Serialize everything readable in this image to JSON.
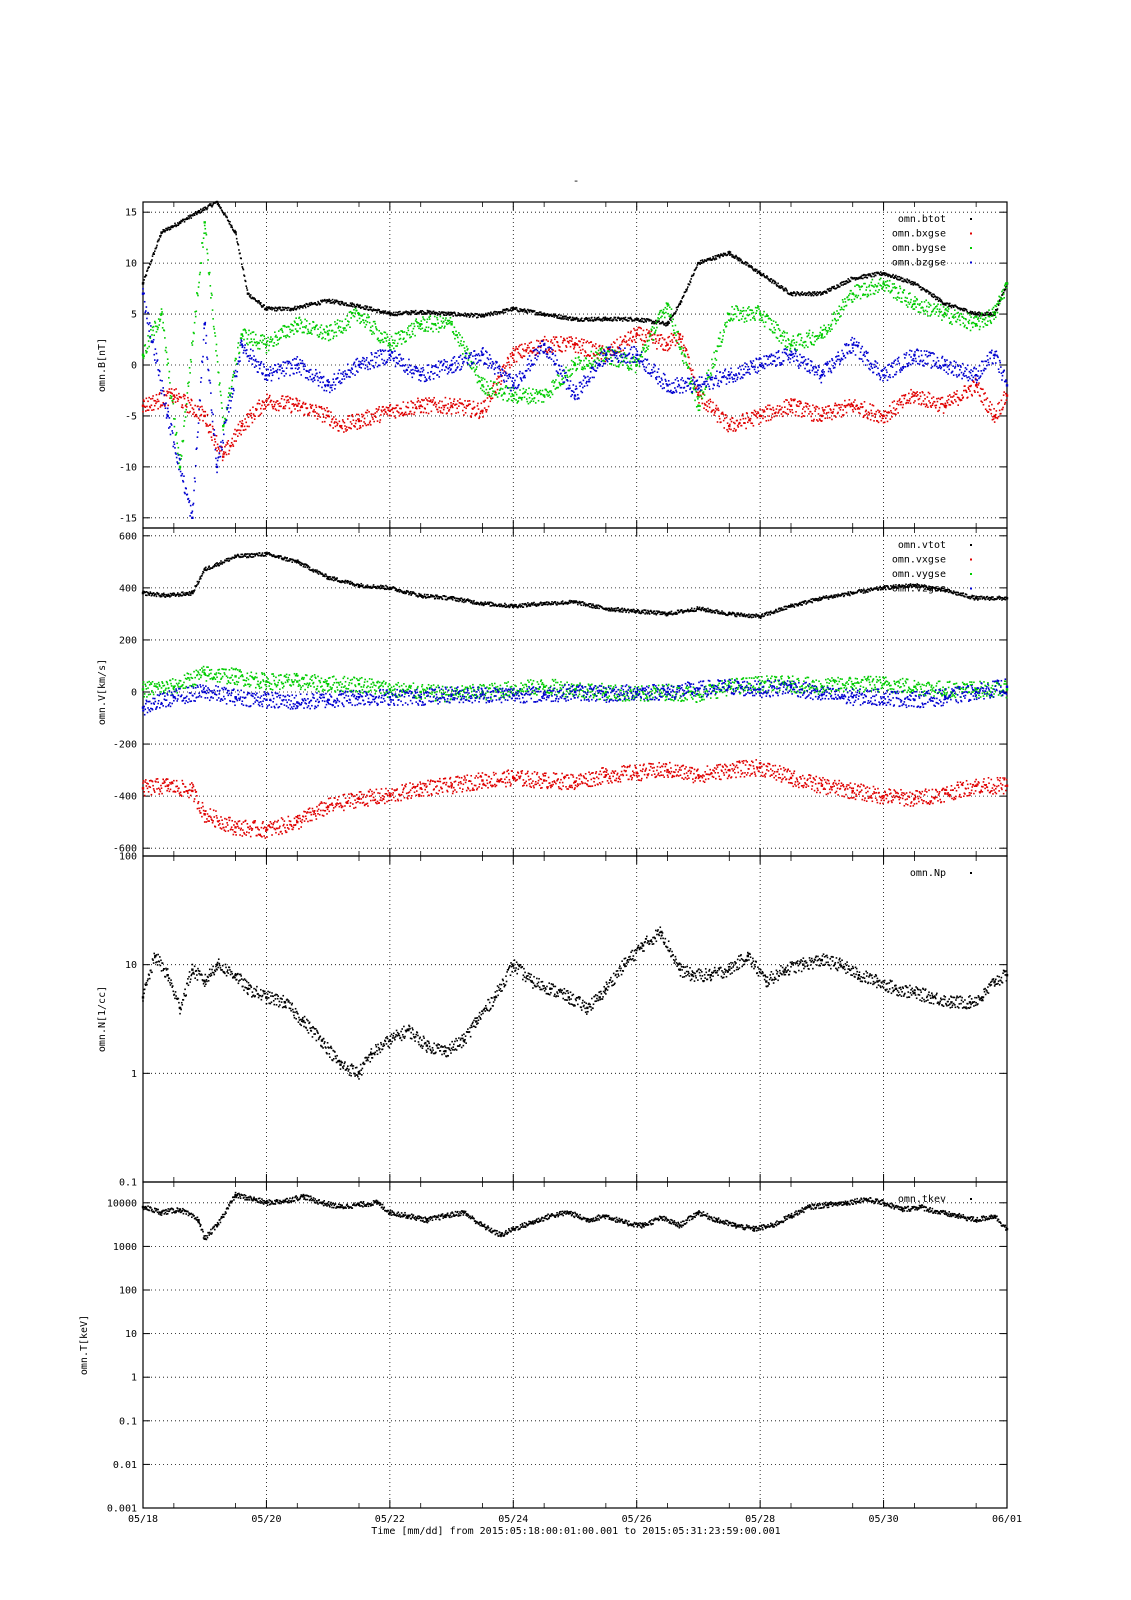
{
  "figure": {
    "title": "-",
    "time_label": "Time [mm/dd]  from 2015:05:18:00:01:00.001  to  2015:05:31:23:59:00.001"
  },
  "colors": {
    "black": "#000000",
    "red": "#e00000",
    "green": "#00cc00",
    "blue": "#0000d0"
  },
  "chart_data": [
    {
      "type": "scatter",
      "ylabel": "omn.B[nT]",
      "ylim": [
        -16,
        16
      ],
      "yticks": [
        15,
        10,
        5,
        0,
        -5,
        -10,
        -15
      ],
      "grid": true,
      "legend_position": "top-right",
      "x_unit": "days since 05/18 00:00",
      "series": [
        {
          "name": "omn.btot",
          "color": "#000000",
          "x": [
            0,
            0.3,
            0.6,
            0.9,
            1.2,
            1.5,
            1.7,
            2,
            2.4,
            3,
            3.5,
            4,
            4.5,
            5,
            5.5,
            6,
            6.5,
            7,
            7.5,
            8,
            8.5,
            8.7,
            9,
            9.5,
            10,
            10.5,
            11,
            11.5,
            12,
            12.5,
            13,
            13.5,
            13.8,
            14
          ],
          "y": [
            8,
            13,
            14,
            15,
            16,
            13,
            7,
            5.5,
            5.5,
            6.3,
            5.8,
            5,
            5.2,
            5,
            4.8,
            5.5,
            5,
            4.5,
            4.5,
            4.5,
            4,
            6,
            10,
            11,
            9,
            7,
            7,
            8.5,
            9,
            8,
            6,
            5,
            5,
            8
          ]
        },
        {
          "name": "omn.bxgse",
          "color": "#e00000",
          "x": [
            0,
            0.5,
            1,
            1.3,
            1.6,
            2,
            2.5,
            3,
            3.2,
            3.5,
            4,
            4.5,
            5,
            5.5,
            6,
            6.5,
            7,
            7.5,
            8,
            8.5,
            8.7,
            9,
            9.5,
            10,
            10.5,
            11,
            11.5,
            12,
            12.5,
            13,
            13.5,
            13.8,
            14
          ],
          "y": [
            -4,
            -3,
            -5,
            -9,
            -6,
            -3.5,
            -4,
            -5,
            -6,
            -5.5,
            -4.5,
            -4,
            -4,
            -4.5,
            1,
            2,
            2,
            1,
            3,
            2,
            3,
            -3,
            -6,
            -5,
            -4,
            -5,
            -4,
            -5,
            -3,
            -4,
            -2,
            -5,
            -3
          ]
        },
        {
          "name": "omn.bygse",
          "color": "#00cc00",
          "x": [
            0,
            0.3,
            0.6,
            1,
            1.3,
            1.6,
            2,
            2.5,
            3,
            3.5,
            4,
            4.5,
            5,
            5.5,
            6,
            6.5,
            7,
            7.5,
            8,
            8.5,
            9,
            9.5,
            10,
            10.5,
            11,
            11.5,
            12,
            12.5,
            13,
            13.5,
            13.8,
            14
          ],
          "y": [
            1,
            5,
            -10,
            14,
            -6,
            3,
            2,
            4,
            3,
            5,
            2,
            4,
            4,
            -2,
            -3,
            -3,
            0,
            1,
            0,
            6,
            -4,
            5,
            5,
            2,
            3,
            7,
            8,
            6,
            5,
            4,
            5,
            8
          ]
        },
        {
          "name": "omn.bzgse",
          "color": "#0000d0",
          "x": [
            0,
            0.4,
            0.8,
            1,
            1.2,
            1.6,
            2,
            2.5,
            3,
            3.5,
            4,
            4.5,
            5,
            5.5,
            6,
            6.5,
            7,
            7.5,
            8,
            8.5,
            9,
            9.5,
            10,
            10.5,
            11,
            11.5,
            12,
            12.5,
            13,
            13.5,
            13.8,
            14
          ],
          "y": [
            7,
            -5,
            -15,
            4,
            -10,
            2,
            -1,
            0,
            -2,
            0,
            1,
            -1,
            0,
            1,
            -2,
            2,
            -3,
            1,
            1,
            -2,
            -2,
            -1,
            0,
            1,
            -1,
            2,
            -1,
            1,
            0,
            -1,
            1,
            -2
          ]
        }
      ]
    },
    {
      "type": "scatter",
      "ylabel": "omn.V[km/s]",
      "ylim": [
        -630,
        630
      ],
      "yticks": [
        600,
        400,
        200,
        0,
        -200,
        -400,
        -600
      ],
      "grid": true,
      "legend_position": "top-right",
      "x_unit": "days since 05/18 00:00",
      "series": [
        {
          "name": "omn.vtot",
          "color": "#000000",
          "x": [
            0,
            0.4,
            0.8,
            1,
            1.5,
            2,
            2.5,
            3,
            3.5,
            4,
            4.5,
            5,
            5.5,
            6,
            6.5,
            7,
            7.5,
            8,
            8.5,
            9,
            9.5,
            10,
            10.5,
            11,
            11.5,
            12,
            12.5,
            13,
            13.5,
            14
          ],
          "y": [
            380,
            370,
            380,
            470,
            520,
            530,
            500,
            440,
            410,
            400,
            370,
            360,
            340,
            330,
            340,
            345,
            320,
            310,
            300,
            320,
            300,
            290,
            330,
            360,
            380,
            400,
            410,
            390,
            360,
            360
          ]
        },
        {
          "name": "omn.vxgse",
          "color": "#e00000",
          "x": [
            0,
            0.4,
            0.8,
            1,
            1.5,
            2,
            2.5,
            3,
            3.5,
            4,
            4.5,
            5,
            5.5,
            6,
            6.5,
            7,
            7.5,
            8,
            8.5,
            9,
            9.5,
            10,
            10.5,
            11,
            11.5,
            12,
            12.5,
            13,
            13.5,
            14
          ],
          "y": [
            -370,
            -360,
            -380,
            -470,
            -520,
            -530,
            -500,
            -440,
            -410,
            -400,
            -370,
            -360,
            -340,
            -330,
            -340,
            -345,
            -320,
            -310,
            -300,
            -320,
            -300,
            -290,
            -330,
            -360,
            -380,
            -400,
            -410,
            -390,
            -360,
            -360
          ]
        },
        {
          "name": "omn.vygse",
          "color": "#00cc00",
          "x": [
            0,
            0.5,
            1,
            1.5,
            2,
            2.5,
            3,
            3.5,
            4,
            4.5,
            5,
            5.5,
            6,
            6.5,
            7,
            7.5,
            8,
            8.5,
            9,
            9.5,
            10,
            10.5,
            11,
            11.5,
            12,
            12.5,
            13,
            13.5,
            14
          ],
          "y": [
            10,
            20,
            70,
            60,
            40,
            40,
            30,
            30,
            10,
            0,
            -10,
            0,
            10,
            20,
            10,
            0,
            -10,
            0,
            -10,
            20,
            30,
            30,
            20,
            30,
            30,
            20,
            10,
            10,
            10
          ]
        },
        {
          "name": "omn.vzgse",
          "color": "#0000d0",
          "x": [
            0,
            0.5,
            1,
            1.5,
            2,
            2.5,
            3,
            3.5,
            4,
            4.5,
            5,
            5.5,
            6,
            6.5,
            7,
            7.5,
            8,
            8.5,
            9,
            9.5,
            10,
            10.5,
            11,
            11.5,
            12,
            12.5,
            13,
            13.5,
            14
          ],
          "y": [
            -60,
            -20,
            0,
            -20,
            -30,
            -40,
            -30,
            -20,
            -20,
            -20,
            -10,
            -10,
            -10,
            -10,
            0,
            -10,
            0,
            0,
            10,
            20,
            10,
            20,
            -10,
            -20,
            -20,
            -30,
            -20,
            0,
            20
          ]
        }
      ]
    },
    {
      "type": "scatter",
      "ylabel": "omn.N[1/cc]",
      "ylog": true,
      "ylim": [
        0.1,
        100
      ],
      "yticks": [
        100,
        10,
        1,
        0.1
      ],
      "grid": true,
      "legend_position": "top-right",
      "x_unit": "days since 05/18 00:00",
      "series": [
        {
          "name": "omn.Np",
          "color": "#000000",
          "x": [
            0,
            0.2,
            0.4,
            0.6,
            0.8,
            1,
            1.2,
            1.5,
            1.7,
            2,
            2.3,
            2.6,
            2.9,
            3.2,
            3.5,
            3.7,
            4,
            4.3,
            4.6,
            4.9,
            5.2,
            5.4,
            5.7,
            6,
            6.3,
            6.6,
            6.9,
            7.2,
            7.4,
            7.5,
            7.8,
            8.1,
            8.4,
            8.7,
            8.9,
            9.2,
            9.5,
            9.8,
            10.1,
            10.4,
            10.7,
            11,
            11.3,
            11.6,
            11.9,
            12.2,
            12.5,
            12.8,
            13.1,
            13.4,
            13.6,
            13.8,
            14
          ],
          "y": [
            5,
            12,
            8,
            4,
            9,
            7,
            10,
            8,
            6,
            5,
            4.5,
            3,
            2,
            1.2,
            1,
            1.5,
            2,
            2.5,
            1.8,
            1.6,
            2,
            3,
            5,
            10,
            7,
            6,
            5,
            4,
            5,
            6,
            10,
            15,
            20,
            9,
            8,
            8,
            9,
            12,
            7,
            9,
            10,
            11,
            10,
            8,
            7,
            6,
            5.5,
            5,
            4.5,
            4.5,
            5,
            7,
            8
          ]
        }
      ]
    },
    {
      "type": "scatter",
      "ylabel": "omn.T[keV]",
      "ylog": true,
      "ylim": [
        0.001,
        30000
      ],
      "yticks": [
        10000,
        1000,
        100,
        10,
        1,
        0.1,
        0.01,
        0.001
      ],
      "grid": true,
      "legend_position": "top-right",
      "x_unit": "days since 05/18 00:00",
      "series": [
        {
          "name": "omn.tkev",
          "color": "#000000",
          "x": [
            0,
            0.3,
            0.6,
            0.9,
            1,
            1.2,
            1.5,
            1.8,
            2,
            2.3,
            2.6,
            2.9,
            3.2,
            3.5,
            3.8,
            4,
            4.3,
            4.6,
            4.9,
            5.2,
            5.5,
            5.8,
            6,
            6.3,
            6.6,
            6.9,
            7.2,
            7.5,
            7.8,
            8.1,
            8.4,
            8.7,
            9,
            9.3,
            9.6,
            9.9,
            10.2,
            10.5,
            10.8,
            11.1,
            11.4,
            11.7,
            12,
            12.3,
            12.6,
            12.9,
            13.2,
            13.5,
            13.8,
            14
          ],
          "y": [
            8000,
            6000,
            7000,
            4000,
            1500,
            3000,
            15000,
            12000,
            10000,
            11000,
            14000,
            10000,
            8000,
            9000,
            10000,
            6000,
            5000,
            4000,
            5000,
            6000,
            3000,
            1800,
            2500,
            3500,
            5000,
            6000,
            4000,
            5000,
            3500,
            3000,
            4500,
            3000,
            6000,
            4000,
            3000,
            2500,
            3000,
            5000,
            8000,
            9000,
            10000,
            12000,
            10000,
            7000,
            8000,
            6000,
            5000,
            4000,
            5000,
            2500
          ]
        }
      ]
    }
  ],
  "xaxis": {
    "range": [
      0,
      14
    ],
    "ticks": [
      {
        "x": 0,
        "label": "05/18"
      },
      {
        "x": 2,
        "label": "05/20"
      },
      {
        "x": 4,
        "label": "05/22"
      },
      {
        "x": 6,
        "label": "05/24"
      },
      {
        "x": 8,
        "label": "05/26"
      },
      {
        "x": 10,
        "label": "05/28"
      },
      {
        "x": 12,
        "label": "05/30"
      },
      {
        "x": 14,
        "label": "06/01"
      }
    ]
  }
}
